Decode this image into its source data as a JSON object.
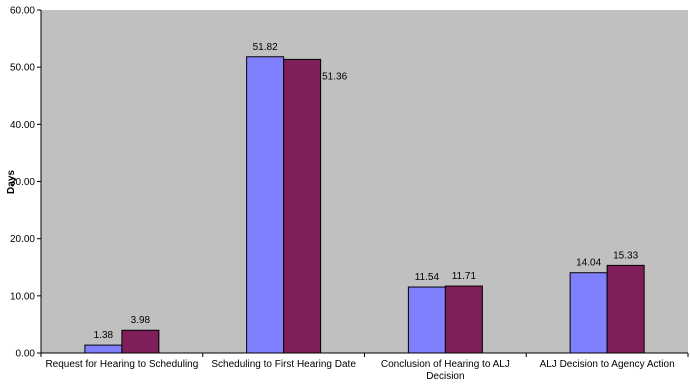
{
  "chart_data": {
    "type": "bar",
    "categories": [
      [
        "Request for Hearing to Scheduling"
      ],
      [
        "Scheduling to First Hearing Date"
      ],
      [
        "Conclusion of Hearing to ALJ",
        "Decision"
      ],
      [
        "ALJ Decision to Agency Action"
      ]
    ],
    "series": [
      {
        "values": [
          1.38,
          51.82,
          11.54,
          14.04
        ],
        "color": "#8080ff"
      },
      {
        "values": [
          3.98,
          51.36,
          11.71,
          15.33
        ],
        "color": "#7f1f5a"
      }
    ],
    "data_labels": [
      [
        "1.38",
        "51.82",
        "11.54",
        "14.04"
      ],
      [
        "3.98",
        "51.36",
        "11.71",
        "15.33"
      ]
    ],
    "ylabel": "Days",
    "ylim": [
      0,
      60
    ],
    "yticks": [
      "0.00",
      "10.00",
      "20.00",
      "30.00",
      "40.00",
      "50.00",
      "60.00"
    ],
    "plot_background": "#c0c0c0",
    "grid": false,
    "legend": "none"
  }
}
